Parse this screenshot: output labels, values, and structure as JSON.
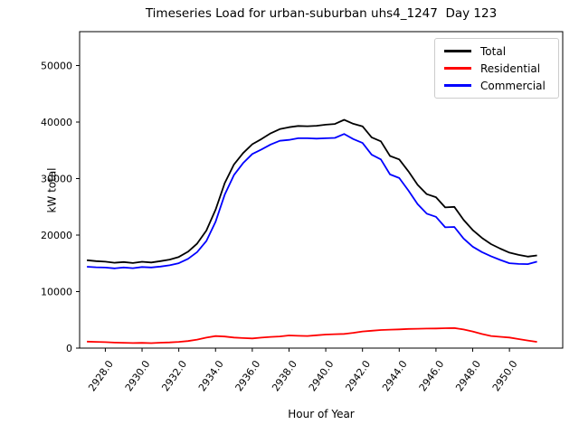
{
  "chart_data": {
    "type": "line",
    "title": "Timeseries Load for urban-suburban uhs4_1247  Day 123",
    "xlabel": "Hour of Year",
    "ylabel": "kW total",
    "grid": false,
    "legend": {
      "position": "upper right"
    },
    "xlim": [
      2926.6,
      2952.9
    ],
    "ylim": [
      0,
      56000
    ],
    "xticks": [
      2928,
      2930,
      2932,
      2934,
      2936,
      2938,
      2940,
      2942,
      2944,
      2946,
      2948,
      2950
    ],
    "xtick_labels": [
      "2928.0",
      "2930.0",
      "2932.0",
      "2934.0",
      "2936.0",
      "2938.0",
      "2940.0",
      "2942.0",
      "2944.0",
      "2946.0",
      "2948.0",
      "2950.0"
    ],
    "yticks": [
      0,
      10000,
      20000,
      30000,
      40000,
      50000
    ],
    "ytick_labels": [
      "0",
      "10000",
      "20000",
      "30000",
      "40000",
      "50000"
    ],
    "x": [
      2927.0,
      2927.5,
      2928.0,
      2928.5,
      2929.0,
      2929.5,
      2930.0,
      2930.5,
      2931.0,
      2931.5,
      2932.0,
      2932.5,
      2933.0,
      2933.5,
      2934.0,
      2934.5,
      2935.0,
      2935.5,
      2936.0,
      2936.5,
      2937.0,
      2937.5,
      2938.0,
      2938.5,
      2939.0,
      2939.5,
      2940.0,
      2940.5,
      2941.0,
      2941.5,
      2942.0,
      2942.5,
      2943.0,
      2943.5,
      2944.0,
      2944.5,
      2945.0,
      2945.5,
      2946.0,
      2946.5,
      2947.0,
      2947.5,
      2948.0,
      2948.5,
      2949.0,
      2949.5,
      2950.0,
      2950.5,
      2951.0,
      2951.5
    ],
    "series": [
      {
        "name": "Total",
        "color": "#000000",
        "values": [
          15550,
          15400,
          15300,
          15100,
          15230,
          15050,
          15280,
          15160,
          15390,
          15660,
          16130,
          17050,
          18500,
          20800,
          24500,
          29200,
          32500,
          34520,
          36080,
          37000,
          38020,
          38750,
          39090,
          39310,
          39270,
          39350,
          39530,
          39660,
          40400,
          39700,
          39250,
          37300,
          36600,
          34000,
          33400,
          31300,
          28900,
          27250,
          26700,
          24900,
          25000,
          22700,
          20900,
          19500,
          18400,
          17600,
          16900,
          16500,
          16200,
          16400
        ]
      },
      {
        "name": "Residential",
        "color": "#ff0000",
        "values": [
          1150,
          1100,
          1050,
          980,
          950,
          900,
          930,
          880,
          960,
          1010,
          1100,
          1250,
          1500,
          1850,
          2130,
          2050,
          1880,
          1780,
          1720,
          1850,
          1980,
          2060,
          2240,
          2180,
          2140,
          2280,
          2400,
          2460,
          2510,
          2700,
          2940,
          3080,
          3200,
          3260,
          3310,
          3400,
          3430,
          3450,
          3470,
          3520,
          3560,
          3300,
          2940,
          2500,
          2140,
          2000,
          1870,
          1600,
          1340,
          1100
        ]
      },
      {
        "name": "Commercial",
        "color": "#0000ff",
        "values": [
          14400,
          14300,
          14250,
          14120,
          14280,
          14150,
          14350,
          14280,
          14430,
          14650,
          15030,
          15800,
          17000,
          18950,
          22370,
          27150,
          30620,
          32740,
          34360,
          35150,
          36040,
          36690,
          36850,
          37130,
          37130,
          37070,
          37130,
          37200,
          37890,
          37000,
          36310,
          34220,
          33400,
          30740,
          30090,
          27900,
          25470,
          23800,
          23230,
          21380,
          21440,
          19400,
          17960,
          17000,
          16260,
          15600,
          15030,
          14900,
          14860,
          15300
        ]
      }
    ]
  }
}
